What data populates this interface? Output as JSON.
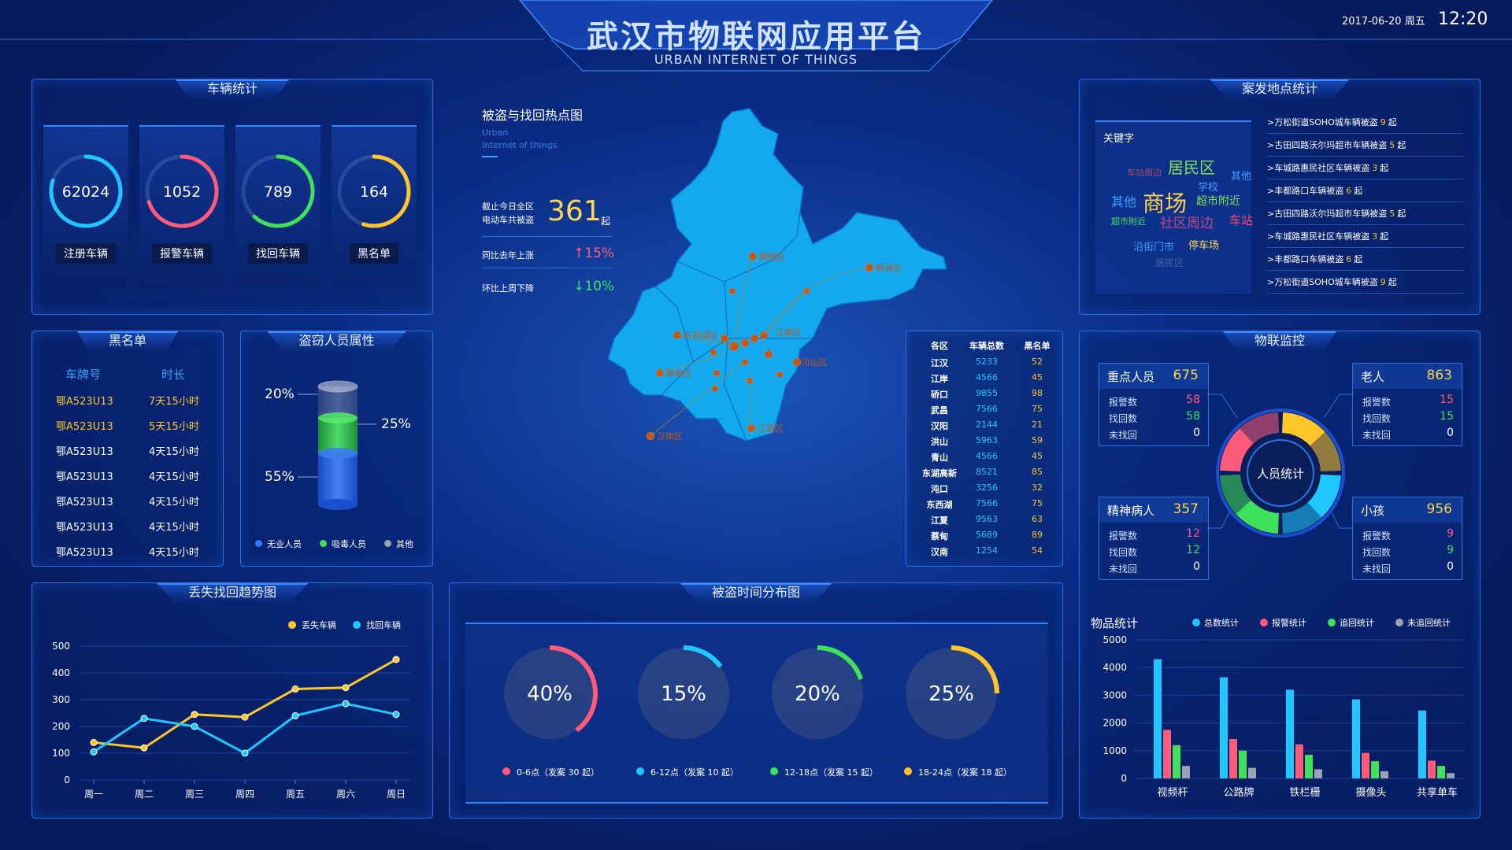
{
  "header": {
    "title": "武汉市物联网应用平台",
    "subtitle": "URBAN INTERNET OF THINGS",
    "date": "2017-06-20",
    "weekday": "周五",
    "time": "12:20"
  },
  "vehicle": {
    "title": "车辆统计",
    "items": [
      {
        "value": "62024",
        "label": "注册车辆",
        "color": "#1ec8ff",
        "pct": 0.8
      },
      {
        "value": "1052",
        "label": "报警车辆",
        "color": "#ff5a7a",
        "pct": 0.7
      },
      {
        "value": "789",
        "label": "找回车辆",
        "color": "#3fe05a",
        "pct": 0.62
      },
      {
        "value": "164",
        "label": "黑名单",
        "color": "#ffc62a",
        "pct": 0.55
      }
    ]
  },
  "blacklist": {
    "title": "黑名单",
    "headers": [
      "车牌号",
      "时长"
    ],
    "rows": [
      [
        "鄂A523U13",
        "7天15小时"
      ],
      [
        "鄂A523U13",
        "5天15小时"
      ],
      [
        "鄂A523U13",
        "4天15小时"
      ],
      [
        "鄂A523U13",
        "4天15小时"
      ],
      [
        "鄂A523U13",
        "4天15小时"
      ],
      [
        "鄂A523U13",
        "4天15小时"
      ],
      [
        "鄂A523U13",
        "4天15小时"
      ]
    ]
  },
  "thief": {
    "title": "盗窃人员属性",
    "labels": {
      "top": "20%",
      "mid": "25%",
      "bottom": "55%"
    },
    "legend": [
      "无业人员",
      "吸毒人员",
      "其他"
    ],
    "colors": [
      "#2f7bff",
      "#3fe05a",
      "#9aa3b5"
    ]
  },
  "hotmap": {
    "title": "被盗与找回热点图",
    "sub1": "Urban",
    "sub2": "Internet of things",
    "total_label1": "截止今日全区",
    "total_label2": "电动车共被盗",
    "total": "361",
    "total_unit": "起",
    "yoy_label": "同比去年上涨",
    "yoy": "15%",
    "mom_label": "环比上周下降",
    "mom": "10%",
    "districts": [
      "黄陂区",
      "新洲区",
      "东西湖区",
      "江岸区",
      "洪山区",
      "蔡甸区",
      "江夏区",
      "汉南区"
    ]
  },
  "district_table": {
    "headers": [
      "各区",
      "车辆总数",
      "黑名单"
    ],
    "rows": [
      [
        "江汉",
        "5233",
        "52"
      ],
      [
        "江岸",
        "4566",
        "45"
      ],
      [
        "硚口",
        "9855",
        "98"
      ],
      [
        "武昌",
        "7566",
        "75"
      ],
      [
        "汉阳",
        "2144",
        "21"
      ],
      [
        "洪山",
        "5963",
        "59"
      ],
      [
        "青山",
        "4566",
        "45"
      ],
      [
        "东湖高新",
        "8521",
        "85"
      ],
      [
        "沌口",
        "3256",
        "32"
      ],
      [
        "东西湖",
        "7566",
        "75"
      ],
      [
        "江夏",
        "9563",
        "63"
      ],
      [
        "蔡甸",
        "5689",
        "89"
      ],
      [
        "汉南",
        "1254",
        "54"
      ]
    ]
  },
  "cases": {
    "title": "案发地点统计",
    "keyword_label": "关键字",
    "words": [
      {
        "t": "车站周边",
        "c": "#b04a68"
      },
      {
        "t": "居民区",
        "c": "#7fe05a"
      },
      {
        "t": "其他",
        "c": "#3aa0ff"
      },
      {
        "t": "其他",
        "c": "#3aa0ff"
      },
      {
        "t": "商场",
        "c": "#ffd54a"
      },
      {
        "t": "学校",
        "c": "#3aa0ff"
      },
      {
        "t": "超市附近",
        "c": "#7fe05a"
      },
      {
        "t": "超市附近",
        "c": "#3fe05a"
      },
      {
        "t": "社区周边",
        "c": "#c04a8a"
      },
      {
        "t": "车站",
        "c": "#ff4a70"
      },
      {
        "t": "沿街门市",
        "c": "#3aa0ff"
      },
      {
        "t": "停车场",
        "c": "#ffd54a"
      },
      {
        "t": "居民区",
        "c": "#4a5fa8"
      }
    ],
    "list": [
      {
        "text": ">万松街道SOHO城车辆被盗",
        "n": "9",
        "u": "起"
      },
      {
        "text": ">古田四路沃尔玛超市车辆被盗",
        "n": "5",
        "u": "起"
      },
      {
        "text": ">车城路惠民社区车辆被盗",
        "n": "3",
        "u": "起"
      },
      {
        "text": ">丰都路口车辆被盗",
        "n": "6",
        "u": "起"
      },
      {
        "text": ">古田四路沃尔玛超市车辆被盗",
        "n": "5",
        "u": "起"
      },
      {
        "text": ">车城路惠民社区车辆被盗",
        "n": "3",
        "u": "起"
      },
      {
        "text": ">丰都路口车辆被盗",
        "n": "6",
        "u": "起"
      },
      {
        "text": ">万松街道SOHO城车辆被盗",
        "n": "9",
        "u": "起"
      }
    ]
  },
  "iot": {
    "title": "物联监控",
    "center": "人员统计",
    "boxes": [
      {
        "name": "重点人员",
        "total": "675",
        "alarm": "58",
        "found": "58",
        "lost": "0"
      },
      {
        "name": "老人",
        "total": "863",
        "alarm": "15",
        "found": "15",
        "lost": "0"
      },
      {
        "name": "精神病人",
        "total": "357",
        "alarm": "12",
        "found": "12",
        "lost": "0"
      },
      {
        "name": "小孩",
        "total": "956",
        "alarm": "9",
        "found": "9",
        "lost": "0"
      }
    ],
    "row_labels": [
      "报警数",
      "找回数",
      "未找回"
    ]
  },
  "goods": {
    "title": "物品统计"
  },
  "trend": {
    "title": "丢失找回趋势图"
  },
  "timedist": {
    "title": "被盗时间分布图",
    "items": [
      {
        "pct": "40%",
        "v": 0.4,
        "color": "#ff5a7a",
        "label": "0-6点（发案 30 起）"
      },
      {
        "pct": "15%",
        "v": 0.15,
        "color": "#1ec8ff",
        "label": "6-12点（发案 10 起）"
      },
      {
        "pct": "20%",
        "v": 0.2,
        "color": "#3fe05a",
        "label": "12-18点（发案 15 起）"
      },
      {
        "pct": "25%",
        "v": 0.25,
        "color": "#ffc62a",
        "label": "18-24点（发案 18 起）"
      }
    ]
  },
  "chart_data": [
    {
      "type": "line",
      "title": "丢失找回趋势图",
      "categories": [
        "周一",
        "周二",
        "周三",
        "周四",
        "周五",
        "周六",
        "周日"
      ],
      "ylim": [
        0,
        500
      ],
      "yticks": [
        0,
        100,
        200,
        300,
        400,
        500
      ],
      "series": [
        {
          "name": "丢失车辆",
          "color": "#ffc62a",
          "values": [
            140,
            120,
            245,
            235,
            340,
            345,
            450
          ]
        },
        {
          "name": "找回车辆",
          "color": "#1ec8ff",
          "values": [
            105,
            230,
            200,
            100,
            240,
            285,
            245
          ]
        }
      ]
    },
    {
      "type": "bar",
      "title": "物品统计",
      "categories": [
        "视频杆",
        "公路牌",
        "铁栏栅",
        "摄像头",
        "共享单车"
      ],
      "ylim": [
        0,
        5000
      ],
      "yticks": [
        0,
        1000,
        2000,
        3000,
        4000,
        5000
      ],
      "series": [
        {
          "name": "总数统计",
          "color": "#1ec8ff",
          "values": [
            4300,
            3650,
            3200,
            2850,
            2450
          ]
        },
        {
          "name": "报警统计",
          "color": "#ff5a7a",
          "values": [
            1750,
            1420,
            1230,
            920,
            640
          ]
        },
        {
          "name": "追回统计",
          "color": "#3fe05a",
          "values": [
            1200,
            1000,
            850,
            620,
            450
          ]
        },
        {
          "name": "未追回统计",
          "color": "#9aa3b5",
          "values": [
            450,
            380,
            330,
            260,
            190
          ]
        }
      ]
    }
  ]
}
